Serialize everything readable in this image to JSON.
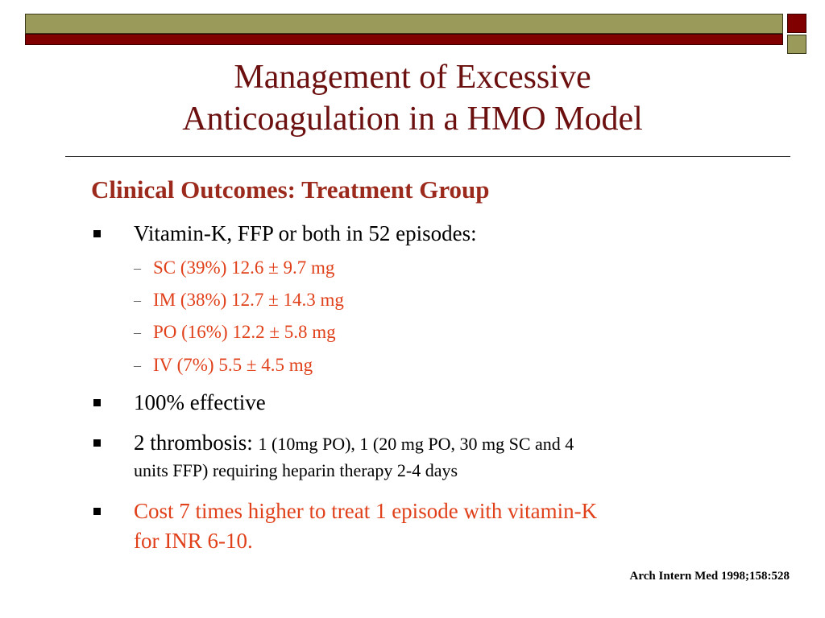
{
  "slide": {
    "title_line1": "Management of Excessive",
    "title_line2": "Anticoagulation in a HMO Model",
    "subtitle": "Clinical Outcomes:  Treatment Group",
    "bullets": [
      {
        "text": "Vitamin-K, FFP or both in 52 episodes:",
        "subitems": [
          "SC (39%) 12.6 ± 9.7 mg",
          "IM (38%) 12.7 ± 14.3 mg",
          "PO (16%) 12.2 ± 5.8 mg",
          "IV (7%) 5.5 ± 4.5 mg"
        ]
      },
      {
        "text": "100% effective"
      },
      {
        "lead": "2 thrombosis: ",
        "detail_line1": "1 (10mg PO), 1 (20 mg PO, 30 mg SC and 4",
        "detail_line2": "units FFP) requiring heparin therapy 2-4 days"
      },
      {
        "line1": "Cost 7 times higher to treat 1 episode with vitamin-K",
        "line2": "for INR 6-10."
      }
    ],
    "citation": "Arch Intern Med 1998;158:528",
    "colors": {
      "title": "#6b0f0f",
      "subtitle": "#9b2a1c",
      "highlight": "#e0401a",
      "bar_olive": "#9a9a5a",
      "bar_maroon": "#800000"
    }
  }
}
